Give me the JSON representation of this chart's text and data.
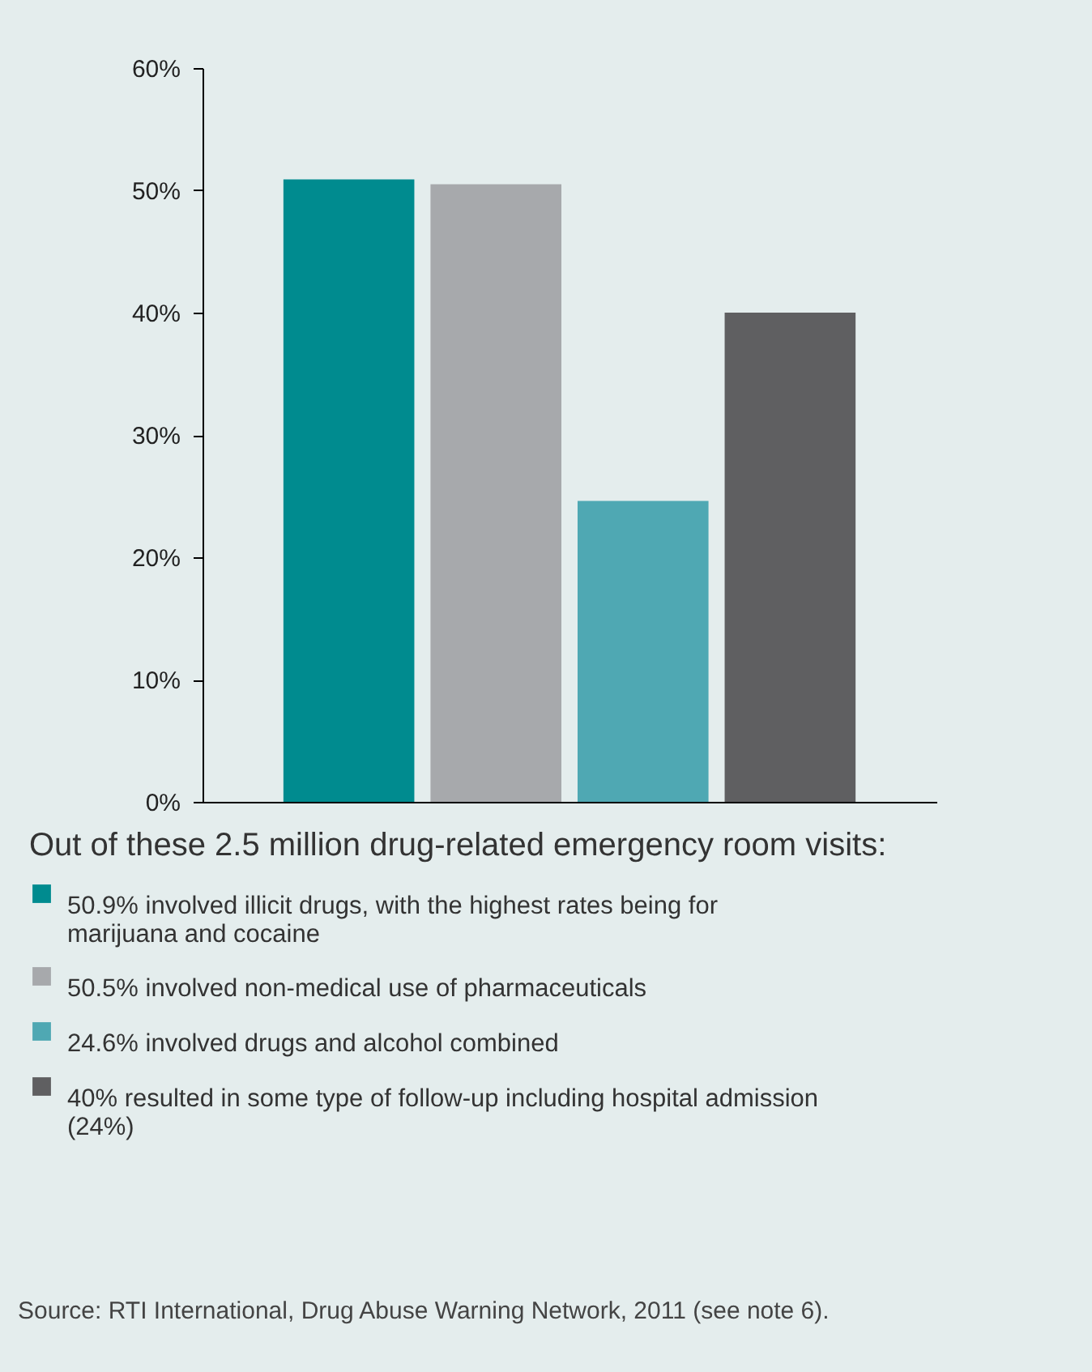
{
  "chart_data": {
    "type": "bar",
    "categories": [
      null,
      null,
      null,
      null
    ],
    "series": [
      {
        "name": "50.9% involved illicit drugs, with the highest rates being for marijuana and cocaine",
        "color": "#008b8f",
        "values": [
          50.9,
          null,
          null,
          null
        ]
      },
      {
        "name": "50.5% involved non-medical use of pharmaceuticals",
        "color": "#a7a9ac",
        "values": [
          null,
          50.5,
          null,
          null
        ]
      },
      {
        "name": "24.6% involved drugs and alcohol combined",
        "color": "#4fa8b3",
        "values": [
          null,
          null,
          24.6,
          null
        ]
      },
      {
        "name": "40% resulted in some type of follow-up including hospital admission (24%)",
        "color": "#5f5f61",
        "values": [
          null,
          null,
          null,
          40
        ]
      }
    ],
    "ylim": [
      0,
      60
    ],
    "yticks": [
      {
        "value": 0,
        "label": "0%"
      },
      {
        "value": 10,
        "label": "10%"
      },
      {
        "value": 20,
        "label": "20%"
      },
      {
        "value": 30,
        "label": "30%"
      },
      {
        "value": 40,
        "label": "40%"
      },
      {
        "value": 50,
        "label": "50%"
      },
      {
        "value": 60,
        "label": "60%"
      }
    ],
    "legend": "bottom",
    "legend_title": "Out of these 2.5 million drug-related emergency room visits:",
    "tick_labels": "y",
    "grid": false,
    "annotations": [
      "Source: RTI International, Drug Abuse Warning Network, 2011 (see note 6)."
    ]
  }
}
